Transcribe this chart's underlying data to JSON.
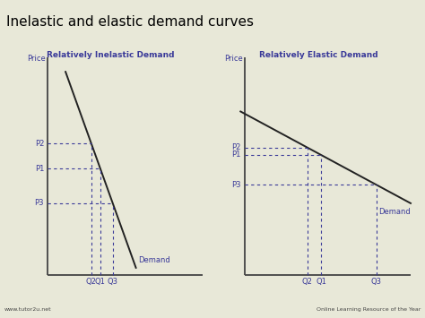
{
  "title": "Inelastic and elastic demand curves",
  "title_fontsize": 11,
  "title_bg_color": "#a0a8b8",
  "bg_color": "#e8e8d8",
  "axis_color": "#444444",
  "dashed_color": "#3a3a99",
  "demand_line_color": "#222222",
  "label_color": "#3a3a99",
  "footer_bg_color": "#9aa0b0",
  "footer_text_color": "#444444",
  "left_title": "Relatively Inelastic Demand",
  "right_title": "Relatively Elastic Demand",
  "footer_left": "www.tutor2u.net",
  "footer_right": "Online Learning Resource of the Year"
}
